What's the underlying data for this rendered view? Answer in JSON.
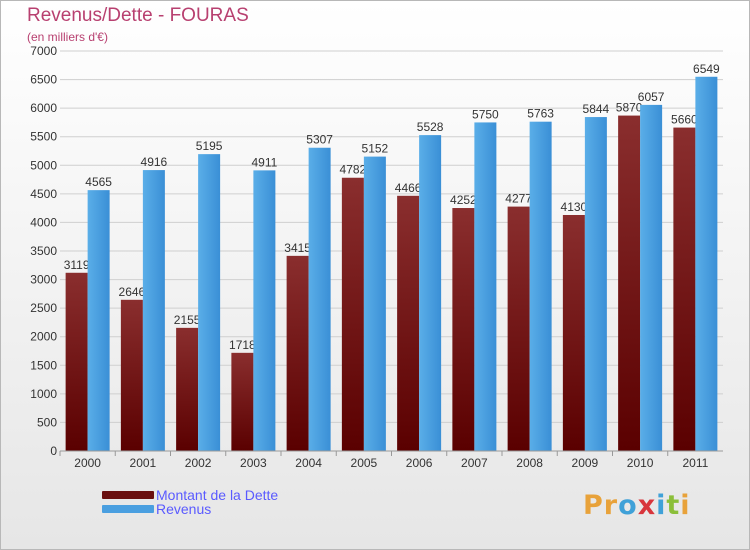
{
  "title": "Revenus/Dette - FOURAS",
  "subtitle": "(en milliers d'€)",
  "logo": {
    "text": "Proxiti",
    "letters": [
      {
        "ch": "P",
        "color": "#e8a23a"
      },
      {
        "ch": "r",
        "color": "#e8a23a"
      },
      {
        "ch": "o",
        "color": "#3fa1d8"
      },
      {
        "ch": "x",
        "color": "#d8353c"
      },
      {
        "ch": "i",
        "color": "#3fa1d8"
      },
      {
        "ch": "t",
        "color": "#8bbf3a"
      },
      {
        "ch": "i",
        "color": "#e8a23a"
      }
    ]
  },
  "chart_data": {
    "type": "bar",
    "categories": [
      "2000",
      "2001",
      "2002",
      "2003",
      "2004",
      "2005",
      "2006",
      "2007",
      "2008",
      "2009",
      "2010",
      "2011"
    ],
    "series": [
      {
        "name": "Montant de la Dette",
        "color": "#7a1e1e",
        "values": [
          3119,
          2646,
          2155,
          1718,
          3415,
          4782,
          4466,
          4252,
          4277,
          4130,
          5870,
          5660
        ],
        "labels": [
          "3119",
          "2646",
          "2155",
          "1718",
          "3415",
          "4782",
          "4466",
          "4252",
          "4277",
          "4130",
          "5870",
          "5660"
        ]
      },
      {
        "name": "Revenus",
        "color": "#4a9fe0",
        "values": [
          4565,
          4916,
          5195,
          4911,
          5307,
          5152,
          5528,
          5750,
          5763,
          5844,
          6057,
          6549
        ],
        "labels": [
          "4565",
          "4916",
          "5195",
          "4911",
          "5307",
          "5152",
          "5528",
          "5750",
          "5763",
          "5844",
          "6057",
          "6549"
        ]
      }
    ],
    "ylim": [
      0,
      7000
    ],
    "yticks": [
      "0",
      "500",
      "1000",
      "1500",
      "2000",
      "2500",
      "3000",
      "3500",
      "4000",
      "4500",
      "5000",
      "5500",
      "6000",
      "6500",
      "7000"
    ],
    "grid": true,
    "legend": "bottom-left"
  }
}
